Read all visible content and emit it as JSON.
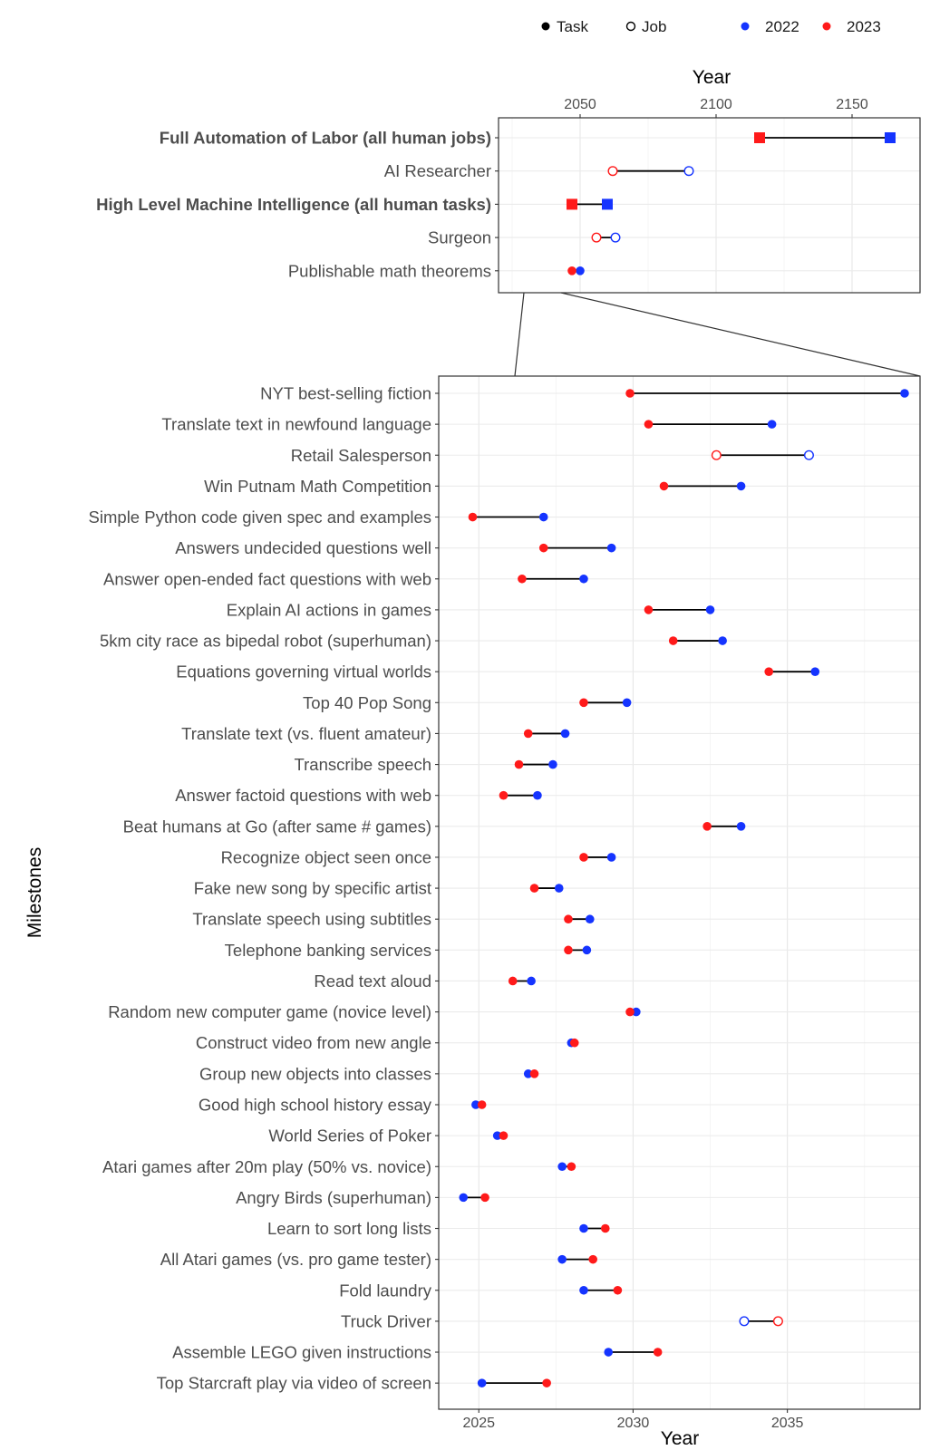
{
  "legend": {
    "items": [
      {
        "label": "Task",
        "marker": "filled-circle",
        "color": "#000000"
      },
      {
        "label": "Job",
        "marker": "open-circle",
        "color": "#000000"
      },
      {
        "label": "2022",
        "marker": "filled-circle",
        "color": "#1534ff"
      },
      {
        "label": "2023",
        "marker": "filled-circle",
        "color": "#ff1a1a"
      }
    ],
    "placement": "top-right"
  },
  "colors": {
    "y2022": "#1534ff",
    "y2023": "#ff1a1a",
    "segment": "#000000",
    "grid": "#ebebeb",
    "panel_border": "#333333"
  },
  "chart_data": [
    {
      "type": "dumbbell",
      "panel": "top",
      "xlabel": "Year",
      "xaxis_position": "top",
      "xlim": [
        2020,
        2175
      ],
      "xticks": [
        2050,
        2100,
        2150
      ],
      "grid": true,
      "rows": [
        {
          "label": "Full Automation of Labor (all human jobs)",
          "bold": true,
          "kind": "milestone",
          "y2023": 2116,
          "y2022": 2164
        },
        {
          "label": "AI Researcher",
          "bold": false,
          "kind": "job",
          "y2023": 2062,
          "y2022": 2090
        },
        {
          "label": "High Level Machine Intelligence (all human tasks)",
          "bold": true,
          "kind": "milestone",
          "y2023": 2047,
          "y2022": 2060
        },
        {
          "label": "Surgeon",
          "bold": false,
          "kind": "job",
          "y2023": 2056,
          "y2022": 2063
        },
        {
          "label": "Publishable math theorems",
          "bold": false,
          "kind": "task",
          "y2023": 2047,
          "y2022": 2050
        }
      ]
    },
    {
      "type": "dumbbell",
      "panel": "bottom",
      "xlabel": "Year",
      "ylabel": "Milestones",
      "xlim": [
        2023.7,
        2039.3
      ],
      "xticks": [
        2025,
        2030,
        2035
      ],
      "grid": true,
      "rows": [
        {
          "label": "NYT best-selling fiction",
          "kind": "task",
          "y2023": 2029.9,
          "y2022": 2038.8
        },
        {
          "label": "Translate text in newfound language",
          "kind": "task",
          "y2023": 2030.5,
          "y2022": 2034.5
        },
        {
          "label": "Retail Salesperson",
          "kind": "job",
          "y2023": 2032.7,
          "y2022": 2035.7
        },
        {
          "label": "Win Putnam Math Competition",
          "kind": "task",
          "y2023": 2031.0,
          "y2022": 2033.5
        },
        {
          "label": "Simple Python code given spec and examples",
          "kind": "task",
          "y2023": 2024.8,
          "y2022": 2027.1
        },
        {
          "label": "Answers undecided questions well",
          "kind": "task",
          "y2023": 2027.1,
          "y2022": 2029.3
        },
        {
          "label": "Answer open-ended fact questions with web",
          "kind": "task",
          "y2023": 2026.4,
          "y2022": 2028.4
        },
        {
          "label": "Explain AI actions in games",
          "kind": "task",
          "y2023": 2030.5,
          "y2022": 2032.5
        },
        {
          "label": "5km city race as bipedal robot (superhuman)",
          "kind": "task",
          "y2023": 2031.3,
          "y2022": 2032.9
        },
        {
          "label": "Equations governing virtual worlds",
          "kind": "task",
          "y2023": 2034.4,
          "y2022": 2035.9
        },
        {
          "label": "Top 40 Pop Song",
          "kind": "task",
          "y2023": 2028.4,
          "y2022": 2029.8
        },
        {
          "label": "Translate text (vs. fluent amateur)",
          "kind": "task",
          "y2023": 2026.6,
          "y2022": 2027.8
        },
        {
          "label": "Transcribe speech",
          "kind": "task",
          "y2023": 2026.3,
          "y2022": 2027.4
        },
        {
          "label": "Answer factoid questions with web",
          "kind": "task",
          "y2023": 2025.8,
          "y2022": 2026.9
        },
        {
          "label": "Beat humans at Go (after same # games)",
          "kind": "task",
          "y2023": 2032.4,
          "y2022": 2033.5
        },
        {
          "label": "Recognize object seen once",
          "kind": "task",
          "y2023": 2028.4,
          "y2022": 2029.3
        },
        {
          "label": "Fake new song by specific artist",
          "kind": "task",
          "y2023": 2026.8,
          "y2022": 2027.6
        },
        {
          "label": "Translate speech using subtitles",
          "kind": "task",
          "y2023": 2027.9,
          "y2022": 2028.6
        },
        {
          "label": "Telephone banking services",
          "kind": "task",
          "y2023": 2027.9,
          "y2022": 2028.5
        },
        {
          "label": "Read text aloud",
          "kind": "task",
          "y2023": 2026.1,
          "y2022": 2026.7
        },
        {
          "label": "Random new computer game (novice level)",
          "kind": "task",
          "y2023": 2029.9,
          "y2022": 2030.1
        },
        {
          "label": "Construct video from new angle",
          "kind": "task",
          "y2023": 2028.1,
          "y2022": 2028.0
        },
        {
          "label": "Group new objects into classes",
          "kind": "task",
          "y2023": 2026.8,
          "y2022": 2026.6
        },
        {
          "label": "Good high school history essay",
          "kind": "task",
          "y2023": 2025.1,
          "y2022": 2024.9
        },
        {
          "label": "World Series of Poker",
          "kind": "task",
          "y2023": 2025.8,
          "y2022": 2025.6
        },
        {
          "label": "Atari games after 20m play (50% vs. novice)",
          "kind": "task",
          "y2023": 2028.0,
          "y2022": 2027.7
        },
        {
          "label": "Angry Birds (superhuman)",
          "kind": "task",
          "y2023": 2025.2,
          "y2022": 2024.5
        },
        {
          "label": "Learn to sort long lists",
          "kind": "task",
          "y2023": 2029.1,
          "y2022": 2028.4
        },
        {
          "label": "All Atari games (vs. pro game tester)",
          "kind": "task",
          "y2023": 2028.7,
          "y2022": 2027.7
        },
        {
          "label": "Fold laundry",
          "kind": "task",
          "y2023": 2029.5,
          "y2022": 2028.4
        },
        {
          "label": "Truck Driver",
          "kind": "job",
          "y2023": 2034.7,
          "y2022": 2033.6
        },
        {
          "label": "Assemble LEGO given instructions",
          "kind": "task",
          "y2023": 2030.8,
          "y2022": 2029.2
        },
        {
          "label": "Top Starcraft play via video of screen",
          "kind": "task",
          "y2023": 2027.2,
          "y2022": 2025.1
        }
      ]
    }
  ]
}
